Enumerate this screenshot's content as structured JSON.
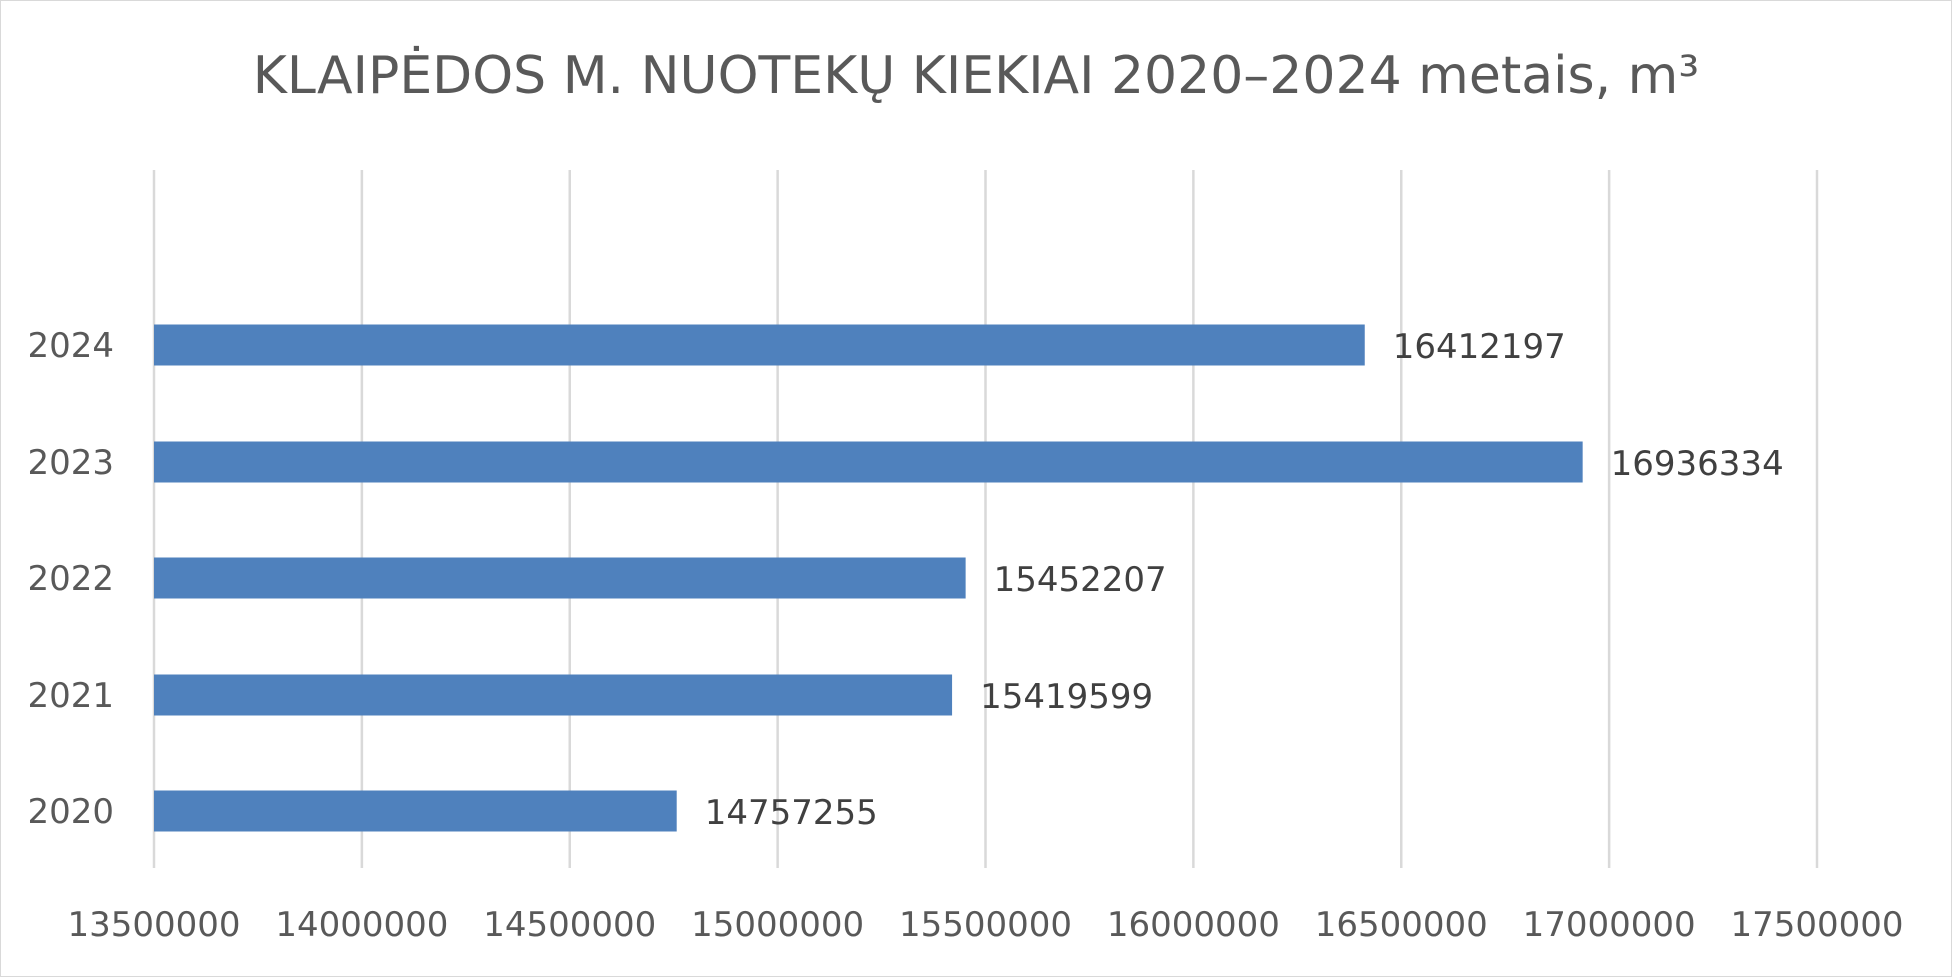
{
  "chart_data": {
    "type": "bar",
    "orientation": "horizontal",
    "title": "KLAIPĖDOS M. NUOTEKŲ KIEKIAI 2020–2024 metais, m³",
    "categories": [
      "2020",
      "2021",
      "2022",
      "2023",
      "2024"
    ],
    "values": [
      14757255,
      15419599,
      15452207,
      16936334,
      16412197
    ],
    "data_labels": [
      "14757255",
      "15419599",
      "15452207",
      "16936334",
      "16412197"
    ],
    "xlim": [
      13500000,
      17500000
    ],
    "x_ticks": [
      13500000,
      14000000,
      14500000,
      15000000,
      15500000,
      16000000,
      16500000,
      17000000,
      17500000
    ],
    "x_tick_labels": [
      "13500000",
      "14000000",
      "14500000",
      "15000000",
      "15500000",
      "16000000",
      "16500000",
      "17000000",
      "17500000"
    ],
    "xlabel": "",
    "ylabel": "",
    "grid": "vertical",
    "legend": "none",
    "bar_color": "#4f81bd"
  }
}
